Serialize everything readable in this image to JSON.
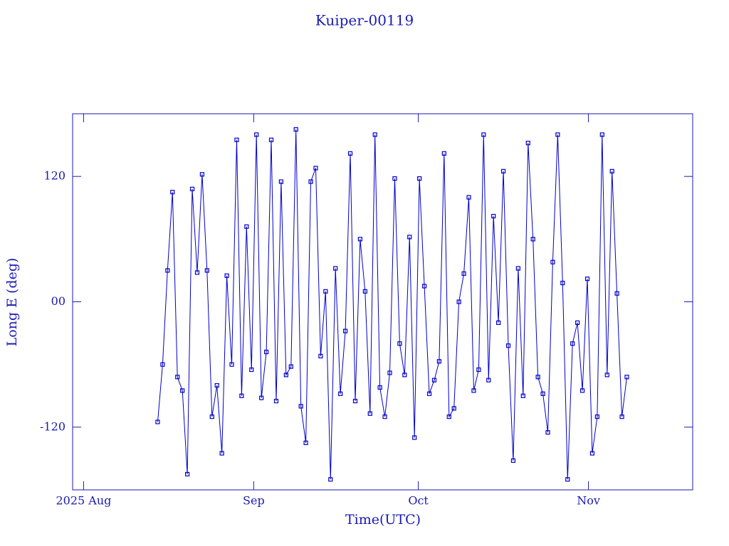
{
  "chart_data": {
    "type": "line",
    "title": "Kuiper-00119",
    "x_label": "Time(UTC)",
    "y_label": "Long E (deg)",
    "color": "#0000c8",
    "xlim": [
      -2,
      111
    ],
    "xticks": [
      {
        "value": 0,
        "label": "2025 Aug"
      },
      {
        "value": 31,
        "label": "Sep"
      },
      {
        "value": 61,
        "label": "Oct"
      },
      {
        "value": 92,
        "label": "Nov"
      }
    ],
    "ylim": [
      -180,
      180
    ],
    "yticks": [
      -120,
      {
        "value": 0,
        "label": "00"
      },
      120
    ],
    "x": [
      13.5,
      14.4,
      15.3,
      16.2,
      17.1,
      18,
      18.9,
      19.8,
      20.7,
      21.6,
      22.5,
      23.4,
      24.3,
      25.2,
      26.1,
      27,
      27.9,
      28.8,
      29.7,
      30.6,
      31.5,
      32.4,
      33.3,
      34.2,
      35.1,
      36,
      36.9,
      37.8,
      38.7,
      39.6,
      40.5,
      41.4,
      42.3,
      43.2,
      44.1,
      45,
      45.9,
      46.8,
      47.7,
      48.6,
      49.5,
      50.4,
      51.3,
      52.2,
      53.1,
      54,
      54.9,
      55.8,
      56.7,
      57.6,
      58.5,
      59.4,
      60.3,
      61.2,
      62.1,
      63,
      63.9,
      64.8,
      65.7,
      66.6,
      67.5,
      68.4,
      69.3,
      70.2,
      71.1,
      72,
      72.9,
      73.8,
      74.7,
      75.6,
      76.5,
      77.4,
      78.3,
      79.2,
      80.1,
      81,
      81.9,
      82.8,
      83.7,
      84.6,
      85.5,
      86.4,
      87.3,
      88.2,
      89.1,
      90,
      90.9,
      91.8,
      92.7,
      93.6,
      94.5,
      95.4,
      96.3,
      97.2,
      98.1,
      99
    ],
    "values": [
      -115,
      -60,
      30,
      105,
      -72,
      -85,
      -165,
      108,
      28,
      122,
      30,
      -110,
      -80,
      -145,
      25,
      -60,
      155,
      -90,
      72,
      -65,
      160,
      -92,
      -48,
      155,
      -95,
      115,
      -70,
      -62,
      165,
      -100,
      -135,
      115,
      128,
      -52,
      10,
      -170,
      32,
      -88,
      -28,
      142,
      -95,
      60,
      10,
      -107,
      160,
      -82,
      -110,
      -68,
      118,
      -40,
      -70,
      62,
      -130,
      118,
      15,
      -88,
      -75,
      -57,
      142,
      -110,
      -102,
      0,
      27,
      100,
      -85,
      -65,
      160,
      -75,
      82,
      -20,
      125,
      -42,
      -152,
      32,
      -90,
      152,
      60,
      -72,
      -88,
      -125,
      38,
      160,
      18,
      -170,
      -40,
      -20,
      -85,
      22,
      -145,
      -110,
      160,
      -70,
      125,
      8,
      -110,
      -72
    ]
  }
}
